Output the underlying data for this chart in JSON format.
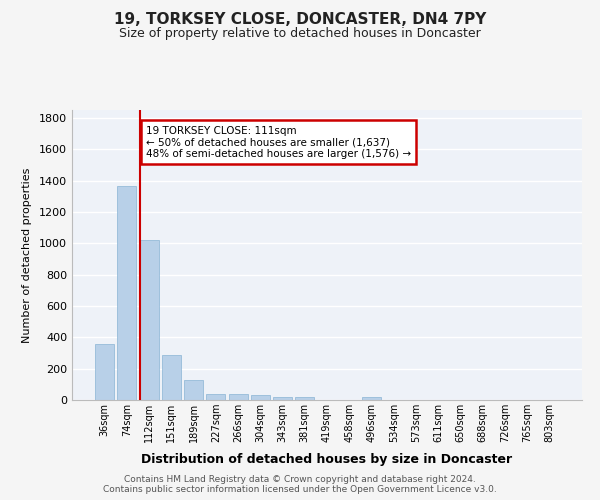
{
  "title1": "19, TORKSEY CLOSE, DONCASTER, DN4 7PY",
  "title2": "Size of property relative to detached houses in Doncaster",
  "xlabel": "Distribution of detached houses by size in Doncaster",
  "ylabel": "Number of detached properties",
  "categories": [
    "36sqm",
    "74sqm",
    "112sqm",
    "151sqm",
    "189sqm",
    "227sqm",
    "266sqm",
    "304sqm",
    "343sqm",
    "381sqm",
    "419sqm",
    "458sqm",
    "496sqm",
    "534sqm",
    "573sqm",
    "611sqm",
    "650sqm",
    "688sqm",
    "726sqm",
    "765sqm",
    "803sqm"
  ],
  "values": [
    355,
    1365,
    1020,
    290,
    130,
    38,
    38,
    32,
    20,
    16,
    0,
    0,
    20,
    0,
    0,
    0,
    0,
    0,
    0,
    0,
    0
  ],
  "bar_color": "#b8d0e8",
  "bar_edge_color": "#8ab4d4",
  "property_line_index": 2,
  "annotation_text": "19 TORKSEY CLOSE: 111sqm\n← 50% of detached houses are smaller (1,637)\n48% of semi-detached houses are larger (1,576) →",
  "annotation_box_color": "#ffffff",
  "annotation_box_edge_color": "#cc0000",
  "vline_color": "#cc0000",
  "ylim": [
    0,
    1850
  ],
  "yticks": [
    0,
    200,
    400,
    600,
    800,
    1000,
    1200,
    1400,
    1600,
    1800
  ],
  "background_color": "#eef2f8",
  "grid_color": "#ffffff",
  "fig_bg_color": "#f5f5f5",
  "footer_line1": "Contains HM Land Registry data © Crown copyright and database right 2024.",
  "footer_line2": "Contains public sector information licensed under the Open Government Licence v3.0."
}
